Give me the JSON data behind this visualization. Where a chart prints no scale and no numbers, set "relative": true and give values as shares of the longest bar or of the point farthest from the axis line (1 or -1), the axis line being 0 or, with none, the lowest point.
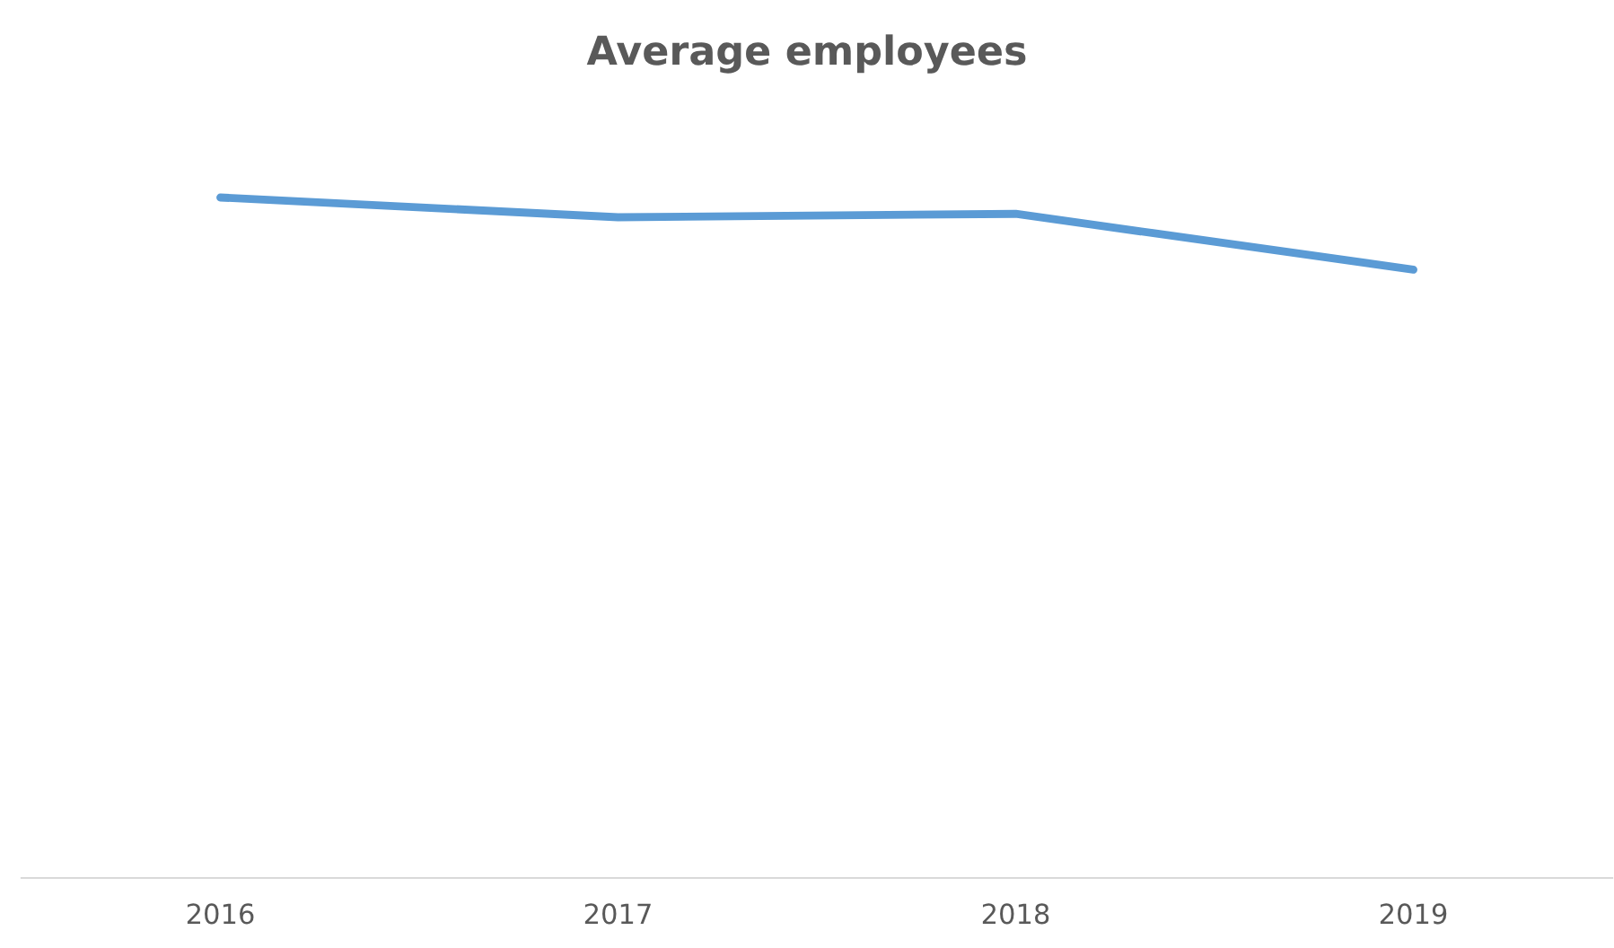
{
  "chart_data": {
    "type": "line",
    "title": "Average employees",
    "categories": [
      "2016",
      "2017",
      "2018",
      "2019"
    ],
    "relative": true,
    "series": [
      {
        "color": "#5b9bd5",
        "values": [
          1,
          0.971,
          0.976,
          0.894
        ]
      }
    ],
    "grid": false,
    "legend": false,
    "marker": "none",
    "line_style": "solid"
  }
}
